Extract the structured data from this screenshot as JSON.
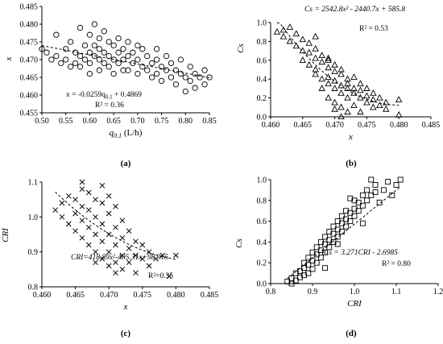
{
  "chart_data": [
    {
      "type": "scatter",
      "panel_label": "(a)",
      "xlabel_main": "q",
      "xlabel_sub": "0.1",
      "xlabel_unit": "(L/h)",
      "ylabel": "x",
      "xlim": [
        0.5,
        0.85
      ],
      "ylim": [
        0.455,
        0.485
      ],
      "xticks": [
        "0.50",
        "0.55",
        "0.60",
        "0.65",
        "0.70",
        "0.75",
        "0.80",
        "0.85"
      ],
      "yticks": [
        "0.455",
        "0.460",
        "0.465",
        "0.470",
        "0.475",
        "0.480",
        "0.485"
      ],
      "marker": "circle",
      "equation": "x = -0.0259q",
      "equation_sub": "0.1",
      "equation_tail": " + 0.4869",
      "r2": "R² = 0.36",
      "fit": {
        "kind": "linear",
        "coef": [
          -0.0259,
          0.4869
        ]
      },
      "points": [
        [
          0.5,
          0.473
        ],
        [
          0.51,
          0.472
        ],
        [
          0.52,
          0.47
        ],
        [
          0.53,
          0.477
        ],
        [
          0.53,
          0.471
        ],
        [
          0.54,
          0.469
        ],
        [
          0.55,
          0.473
        ],
        [
          0.55,
          0.47
        ],
        [
          0.56,
          0.468
        ],
        [
          0.56,
          0.475
        ],
        [
          0.57,
          0.472
        ],
        [
          0.57,
          0.469
        ],
        [
          0.58,
          0.479
        ],
        [
          0.58,
          0.471
        ],
        [
          0.58,
          0.468
        ],
        [
          0.59,
          0.474
        ],
        [
          0.59,
          0.47
        ],
        [
          0.6,
          0.477
        ],
        [
          0.6,
          0.472
        ],
        [
          0.6,
          0.469
        ],
        [
          0.6,
          0.466
        ],
        [
          0.61,
          0.48
        ],
        [
          0.61,
          0.474
        ],
        [
          0.61,
          0.471
        ],
        [
          0.62,
          0.476
        ],
        [
          0.62,
          0.473
        ],
        [
          0.62,
          0.47
        ],
        [
          0.62,
          0.467
        ],
        [
          0.63,
          0.478
        ],
        [
          0.63,
          0.472
        ],
        [
          0.63,
          0.469
        ],
        [
          0.64,
          0.475
        ],
        [
          0.64,
          0.471
        ],
        [
          0.64,
          0.468
        ],
        [
          0.65,
          0.474
        ],
        [
          0.65,
          0.47
        ],
        [
          0.65,
          0.466
        ],
        [
          0.66,
          0.476
        ],
        [
          0.66,
          0.472
        ],
        [
          0.66,
          0.469
        ],
        [
          0.67,
          0.473
        ],
        [
          0.67,
          0.47
        ],
        [
          0.67,
          0.467
        ],
        [
          0.68,
          0.475
        ],
        [
          0.68,
          0.471
        ],
        [
          0.68,
          0.467
        ],
        [
          0.69,
          0.472
        ],
        [
          0.69,
          0.469
        ],
        [
          0.7,
          0.474
        ],
        [
          0.7,
          0.47
        ],
        [
          0.7,
          0.466
        ],
        [
          0.71,
          0.473
        ],
        [
          0.71,
          0.468
        ],
        [
          0.72,
          0.471
        ],
        [
          0.72,
          0.467
        ],
        [
          0.73,
          0.469
        ],
        [
          0.73,
          0.465
        ],
        [
          0.74,
          0.473
        ],
        [
          0.74,
          0.47
        ],
        [
          0.74,
          0.466
        ],
        [
          0.75,
          0.468
        ],
        [
          0.75,
          0.464
        ],
        [
          0.76,
          0.471
        ],
        [
          0.76,
          0.467
        ],
        [
          0.77,
          0.469
        ],
        [
          0.77,
          0.465
        ],
        [
          0.78,
          0.467
        ],
        [
          0.78,
          0.463
        ],
        [
          0.79,
          0.47
        ],
        [
          0.79,
          0.466
        ],
        [
          0.8,
          0.465
        ],
        [
          0.8,
          0.461
        ],
        [
          0.81,
          0.468
        ],
        [
          0.81,
          0.464
        ],
        [
          0.82,
          0.466
        ],
        [
          0.82,
          0.462
        ],
        [
          0.83,
          0.465
        ],
        [
          0.84,
          0.467
        ],
        [
          0.84,
          0.463
        ],
        [
          0.85,
          0.465
        ]
      ]
    },
    {
      "type": "scatter",
      "panel_label": "(b)",
      "xlabel": "x",
      "ylabel": "Cs",
      "xlim": [
        0.46,
        0.485
      ],
      "ylim": [
        0.0,
        1.0
      ],
      "xticks": [
        "0.460",
        "0.465",
        "0.470",
        "0.475",
        "0.480",
        "0.485"
      ],
      "yticks": [
        "0.0",
        "0.2",
        "0.4",
        "0.6",
        "0.8",
        "1.0"
      ],
      "marker": "triangle",
      "equation": "Cs = 2542.8x² - 2440.7x + 585.8",
      "r2": "R² = 0.53",
      "fit": {
        "kind": "quadratic",
        "coef": [
          2542.8,
          -2440.7,
          585.8
        ]
      },
      "points": [
        [
          0.461,
          0.9
        ],
        [
          0.462,
          0.92
        ],
        [
          0.462,
          0.85
        ],
        [
          0.463,
          0.8
        ],
        [
          0.463,
          0.95
        ],
        [
          0.464,
          0.75
        ],
        [
          0.464,
          0.88
        ],
        [
          0.465,
          0.7
        ],
        [
          0.465,
          0.6
        ],
        [
          0.465,
          0.82
        ],
        [
          0.466,
          0.55
        ],
        [
          0.466,
          0.68
        ],
        [
          0.466,
          0.78
        ],
        [
          0.467,
          0.5
        ],
        [
          0.467,
          0.62
        ],
        [
          0.467,
          0.72
        ],
        [
          0.467,
          0.45
        ],
        [
          0.468,
          0.4
        ],
        [
          0.468,
          0.58
        ],
        [
          0.468,
          0.65
        ],
        [
          0.468,
          0.3
        ],
        [
          0.469,
          0.52
        ],
        [
          0.469,
          0.35
        ],
        [
          0.469,
          0.6
        ],
        [
          0.469,
          0.42
        ],
        [
          0.469,
          0.2
        ],
        [
          0.47,
          0.48
        ],
        [
          0.47,
          0.3
        ],
        [
          0.47,
          0.55
        ],
        [
          0.47,
          0.15
        ],
        [
          0.47,
          0.38
        ],
        [
          0.47,
          0.08
        ],
        [
          0.471,
          0.45
        ],
        [
          0.471,
          0.25
        ],
        [
          0.471,
          0.33
        ],
        [
          0.471,
          0.1
        ],
        [
          0.471,
          0.5
        ],
        [
          0.472,
          0.4
        ],
        [
          0.472,
          0.2
        ],
        [
          0.472,
          0.3
        ],
        [
          0.472,
          0.05
        ],
        [
          0.472,
          0.35
        ],
        [
          0.473,
          0.25
        ],
        [
          0.473,
          0.42
        ],
        [
          0.473,
          0.12
        ],
        [
          0.473,
          0.3
        ],
        [
          0.474,
          0.2
        ],
        [
          0.474,
          0.35
        ],
        [
          0.474,
          0.05
        ],
        [
          0.474,
          0.28
        ],
        [
          0.475,
          0.15
        ],
        [
          0.475,
          0.3
        ],
        [
          0.475,
          0.22
        ],
        [
          0.476,
          0.1
        ],
        [
          0.476,
          0.25
        ],
        [
          0.476,
          0.18
        ],
        [
          0.477,
          0.12
        ],
        [
          0.477,
          0.2
        ],
        [
          0.478,
          0.08
        ],
        [
          0.478,
          0.15
        ],
        [
          0.48,
          0.18
        ],
        [
          0.48,
          0.02
        ],
        [
          0.471,
          0.0
        ],
        [
          0.469,
          0.62
        ],
        [
          0.467,
          0.85
        ]
      ]
    },
    {
      "type": "scatter",
      "panel_label": "(c)",
      "xlabel": "x",
      "ylabel": "CRI",
      "xlim": [
        0.46,
        0.485
      ],
      "ylim": [
        0.8,
        1.1
      ],
      "xticks": [
        "0.460",
        "0.465",
        "0.470",
        "0.475",
        "0.480",
        "0.485"
      ],
      "yticks": [
        "0.8",
        "0.9",
        "1.0",
        "1.1"
      ],
      "marker": "cross",
      "equation": "CRI=418.89x²-405.31x+98.915",
      "r2": "R²=0.35",
      "fit": {
        "kind": "quadratic",
        "coef": [
          418.89,
          -405.31,
          98.915
        ]
      },
      "points": [
        [
          0.462,
          1.02
        ],
        [
          0.463,
          1.04
        ],
        [
          0.463,
          1.0
        ],
        [
          0.464,
          1.06
        ],
        [
          0.464,
          0.98
        ],
        [
          0.465,
          1.05
        ],
        [
          0.465,
          1.01
        ],
        [
          0.465,
          0.96
        ],
        [
          0.466,
          1.08
        ],
        [
          0.466,
          1.03
        ],
        [
          0.466,
          0.99
        ],
        [
          0.466,
          0.94
        ],
        [
          0.467,
          1.07
        ],
        [
          0.467,
          1.02
        ],
        [
          0.467,
          0.97
        ],
        [
          0.467,
          0.92
        ],
        [
          0.468,
          1.05
        ],
        [
          0.468,
          1.0
        ],
        [
          0.468,
          0.95
        ],
        [
          0.468,
          0.9
        ],
        [
          0.469,
          1.04
        ],
        [
          0.469,
          0.98
        ],
        [
          0.469,
          0.93
        ],
        [
          0.469,
          0.88
        ],
        [
          0.47,
          1.06
        ],
        [
          0.47,
          1.01
        ],
        [
          0.47,
          0.95
        ],
        [
          0.47,
          0.9
        ],
        [
          0.47,
          0.86
        ],
        [
          0.471,
          1.03
        ],
        [
          0.471,
          0.97
        ],
        [
          0.471,
          0.92
        ],
        [
          0.471,
          0.87
        ],
        [
          0.472,
          0.99
        ],
        [
          0.472,
          0.94
        ],
        [
          0.472,
          0.89
        ],
        [
          0.472,
          0.85
        ],
        [
          0.473,
          0.96
        ],
        [
          0.473,
          0.91
        ],
        [
          0.473,
          0.87
        ],
        [
          0.474,
          0.93
        ],
        [
          0.474,
          0.89
        ],
        [
          0.474,
          0.84
        ],
        [
          0.475,
          0.92
        ],
        [
          0.475,
          0.88
        ],
        [
          0.476,
          0.9
        ],
        [
          0.476,
          0.86
        ],
        [
          0.477,
          0.88
        ],
        [
          0.478,
          0.89
        ],
        [
          0.479,
          0.83
        ],
        [
          0.48,
          0.89
        ],
        [
          0.469,
          1.09
        ],
        [
          0.466,
          1.1
        ],
        [
          0.471,
          0.84
        ],
        [
          0.468,
          0.87
        ]
      ]
    },
    {
      "type": "scatter",
      "panel_label": "(d)",
      "xlabel": "CRI",
      "ylabel": "Cs",
      "xlim": [
        0.8,
        1.2
      ],
      "ylim": [
        0.0,
        1.0
      ],
      "xticks": [
        "0.8",
        "0.9",
        "1.0",
        "1.1",
        "1.2"
      ],
      "yticks": [
        "0.0",
        "0.2",
        "0.4",
        "0.6",
        "0.8",
        "1.0"
      ],
      "marker": "square",
      "equation": "Cs = 3.271CRI - 2.6985",
      "r2": "R² = 0.80",
      "fit": {
        "kind": "linear",
        "coef": [
          3.271,
          -2.6985
        ]
      },
      "points": [
        [
          0.84,
          0.02
        ],
        [
          0.85,
          0.0
        ],
        [
          0.85,
          0.05
        ],
        [
          0.86,
          0.03
        ],
        [
          0.86,
          0.1
        ],
        [
          0.87,
          0.06
        ],
        [
          0.87,
          0.12
        ],
        [
          0.88,
          0.08
        ],
        [
          0.88,
          0.15
        ],
        [
          0.88,
          0.2
        ],
        [
          0.89,
          0.1
        ],
        [
          0.89,
          0.18
        ],
        [
          0.89,
          0.25
        ],
        [
          0.9,
          0.14
        ],
        [
          0.9,
          0.22
        ],
        [
          0.9,
          0.3
        ],
        [
          0.91,
          0.2
        ],
        [
          0.91,
          0.28
        ],
        [
          0.91,
          0.35
        ],
        [
          0.92,
          0.25
        ],
        [
          0.92,
          0.32
        ],
        [
          0.92,
          0.4
        ],
        [
          0.93,
          0.3
        ],
        [
          0.93,
          0.38
        ],
        [
          0.93,
          0.45
        ],
        [
          0.94,
          0.35
        ],
        [
          0.94,
          0.42
        ],
        [
          0.94,
          0.5
        ],
        [
          0.95,
          0.4
        ],
        [
          0.95,
          0.48
        ],
        [
          0.95,
          0.55
        ],
        [
          0.96,
          0.45
        ],
        [
          0.96,
          0.52
        ],
        [
          0.96,
          0.6
        ],
        [
          0.97,
          0.5
        ],
        [
          0.97,
          0.58
        ],
        [
          0.97,
          0.65
        ],
        [
          0.98,
          0.55
        ],
        [
          0.98,
          0.62
        ],
        [
          0.98,
          0.7
        ],
        [
          0.99,
          0.6
        ],
        [
          0.99,
          0.68
        ],
        [
          1.0,
          0.65
        ],
        [
          1.0,
          0.72
        ],
        [
          1.0,
          0.8
        ],
        [
          1.01,
          0.7
        ],
        [
          1.01,
          0.78
        ],
        [
          1.02,
          0.75
        ],
        [
          1.02,
          0.85
        ],
        [
          1.03,
          0.8
        ],
        [
          1.03,
          0.9
        ],
        [
          1.04,
          0.85
        ],
        [
          1.05,
          0.88
        ],
        [
          1.05,
          0.95
        ],
        [
          1.06,
          0.78
        ],
        [
          1.07,
          0.9
        ],
        [
          1.08,
          0.98
        ],
        [
          1.09,
          0.85
        ],
        [
          1.1,
          0.95
        ],
        [
          1.11,
          1.0
        ],
        [
          0.99,
          0.82
        ],
        [
          1.04,
          1.0
        ],
        [
          0.96,
          0.38
        ],
        [
          0.93,
          0.15
        ],
        [
          1.02,
          0.58
        ]
      ]
    }
  ]
}
